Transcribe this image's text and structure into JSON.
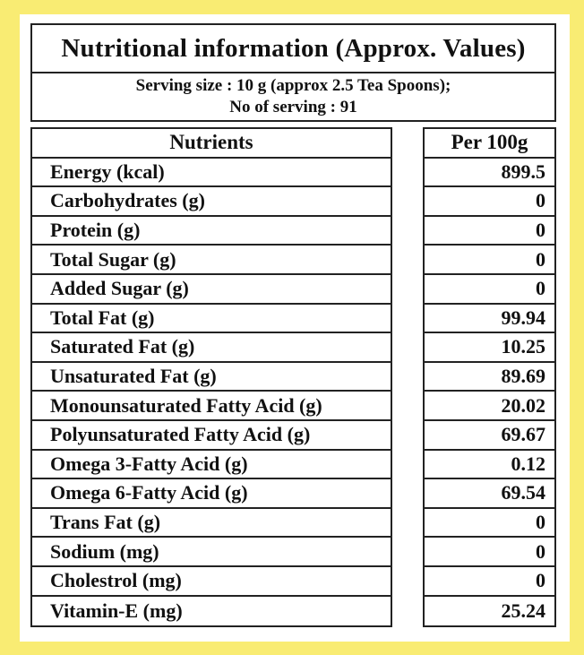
{
  "title": "Nutritional information (Approx. Values)",
  "serving": {
    "line1": "Serving size : 10 g (approx 2.5 Tea Spoons);",
    "line2": "No of serving : 91"
  },
  "table": {
    "headers": {
      "nutrients": "Nutrients",
      "per100": "Per 100g"
    },
    "rows": [
      {
        "name": "Energy (kcal)",
        "value": "899.5"
      },
      {
        "name": "Carbohydrates (g)",
        "value": "0"
      },
      {
        "name": "Protein (g)",
        "value": "0"
      },
      {
        "name": "Total Sugar (g)",
        "value": "0"
      },
      {
        "name": "Added Sugar (g)",
        "value": "0"
      },
      {
        "name": "Total Fat (g)",
        "value": "99.94"
      },
      {
        "name": "Saturated Fat (g)",
        "value": "10.25"
      },
      {
        "name": "Unsaturated Fat (g)",
        "value": "89.69"
      },
      {
        "name": "Monounsaturated Fatty Acid (g)",
        "value": "20.02"
      },
      {
        "name": "Polyunsaturated Fatty Acid (g)",
        "value": "69.67"
      },
      {
        "name": "Omega 3-Fatty Acid (g)",
        "value": "0.12"
      },
      {
        "name": "Omega 6-Fatty Acid (g)",
        "value": "69.54"
      },
      {
        "name": "Trans Fat (g)",
        "value": "0"
      },
      {
        "name": "Sodium (mg)",
        "value": "0"
      },
      {
        "name": "Cholestrol (mg)",
        "value": "0"
      },
      {
        "name": "Vitamin-E (mg)",
        "value": "25.24"
      }
    ]
  },
  "colors": {
    "background": "#f9ec73",
    "panel": "#ffffff",
    "border": "#222222",
    "text": "#111111"
  }
}
